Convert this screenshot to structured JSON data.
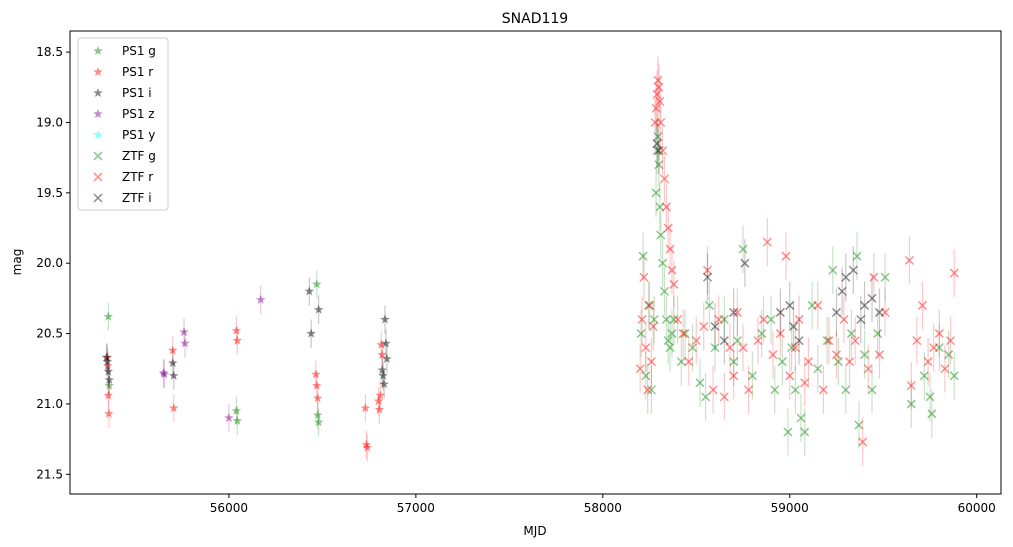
{
  "chart_data": {
    "type": "scatter",
    "title": "SNAD119",
    "xlabel": "MJD",
    "ylabel": "mag",
    "xlim": [
      55150,
      60130
    ],
    "ylim": [
      21.64,
      18.35
    ],
    "y_inverted": true,
    "x_ticks": [
      56000,
      57000,
      58000,
      59000,
      60000
    ],
    "y_ticks": [
      18.5,
      19.0,
      19.5,
      20.0,
      20.5,
      21.0,
      21.5
    ],
    "x_tick_labels": [
      "56000",
      "57000",
      "58000",
      "59000",
      "60000"
    ],
    "y_tick_labels": [
      "18.5",
      "19.0",
      "19.5",
      "20.0",
      "20.5",
      "21.0",
      "21.5"
    ],
    "legend_position": "upper-left",
    "series": [
      {
        "name": "PS1 g",
        "marker": "star",
        "color": "#008000",
        "points": [
          [
            55355,
            20.38
          ],
          [
            55360,
            20.87
          ],
          [
            56040,
            21.05
          ],
          [
            56045,
            21.12
          ],
          [
            56470,
            20.15
          ],
          [
            56475,
            21.08
          ],
          [
            56480,
            21.13
          ]
        ]
      },
      {
        "name": "PS1 r",
        "marker": "star",
        "color": "#ff0000",
        "points": [
          [
            55350,
            20.67
          ],
          [
            55352,
            20.73
          ],
          [
            55355,
            20.94
          ],
          [
            55358,
            21.07
          ],
          [
            55700,
            20.62
          ],
          [
            55705,
            21.03
          ],
          [
            56040,
            20.48
          ],
          [
            56045,
            20.55
          ],
          [
            56465,
            20.79
          ],
          [
            56470,
            20.87
          ],
          [
            56475,
            20.96
          ],
          [
            56730,
            21.03
          ],
          [
            56735,
            21.29
          ],
          [
            56740,
            21.31
          ],
          [
            56800,
            20.98
          ],
          [
            56805,
            21.04
          ],
          [
            56810,
            20.94
          ],
          [
            56815,
            20.58
          ],
          [
            56820,
            20.65
          ]
        ]
      },
      {
        "name": "PS1 i",
        "marker": "star",
        "color": "#000000",
        "points": [
          [
            55345,
            20.67
          ],
          [
            55350,
            20.7
          ],
          [
            55355,
            20.77
          ],
          [
            55360,
            20.83
          ],
          [
            55700,
            20.71
          ],
          [
            55705,
            20.8
          ],
          [
            56430,
            20.2
          ],
          [
            56440,
            20.5
          ],
          [
            56480,
            20.33
          ],
          [
            56820,
            20.76
          ],
          [
            56825,
            20.8
          ],
          [
            56830,
            20.86
          ],
          [
            56835,
            20.4
          ],
          [
            56840,
            20.57
          ],
          [
            56845,
            20.68
          ]
        ]
      },
      {
        "name": "PS1 z",
        "marker": "star",
        "color": "#800080",
        "points": [
          [
            55650,
            20.78
          ],
          [
            55655,
            20.79
          ],
          [
            55760,
            20.49
          ],
          [
            55765,
            20.57
          ],
          [
            56000,
            21.1
          ],
          [
            56170,
            20.26
          ]
        ]
      },
      {
        "name": "PS1 y",
        "marker": "star",
        "color": "#00ffff",
        "points": []
      },
      {
        "name": "ZTF g",
        "marker": "x",
        "color": "#008000",
        "points": [
          [
            58205,
            20.5
          ],
          [
            58215,
            19.95
          ],
          [
            58230,
            20.8
          ],
          [
            58245,
            20.3
          ],
          [
            58260,
            20.9
          ],
          [
            58275,
            20.4
          ],
          [
            58285,
            19.5
          ],
          [
            58290,
            19.2
          ],
          [
            58295,
            19.1
          ],
          [
            58300,
            19.3
          ],
          [
            58305,
            19.6
          ],
          [
            58310,
            19.8
          ],
          [
            58320,
            20.0
          ],
          [
            58330,
            20.2
          ],
          [
            58340,
            20.4
          ],
          [
            58350,
            20.55
          ],
          [
            58360,
            20.6
          ],
          [
            58370,
            20.5
          ],
          [
            58380,
            20.4
          ],
          [
            58420,
            20.7
          ],
          [
            58440,
            20.5
          ],
          [
            58480,
            20.6
          ],
          [
            58520,
            20.85
          ],
          [
            58550,
            20.95
          ],
          [
            58570,
            20.3
          ],
          [
            58600,
            20.6
          ],
          [
            58650,
            20.4
          ],
          [
            58700,
            20.7
          ],
          [
            58720,
            20.55
          ],
          [
            58750,
            19.9
          ],
          [
            58800,
            20.8
          ],
          [
            58850,
            20.5
          ],
          [
            58900,
            20.4
          ],
          [
            58920,
            20.9
          ],
          [
            58960,
            20.7
          ],
          [
            58990,
            21.2
          ],
          [
            59010,
            20.6
          ],
          [
            59030,
            20.9
          ],
          [
            59060,
            21.1
          ],
          [
            59080,
            21.2
          ],
          [
            59120,
            20.3
          ],
          [
            59150,
            20.75
          ],
          [
            59200,
            20.55
          ],
          [
            59230,
            20.05
          ],
          [
            59260,
            20.7
          ],
          [
            59300,
            20.9
          ],
          [
            59330,
            20.5
          ],
          [
            59360,
            19.95
          ],
          [
            59370,
            21.15
          ],
          [
            59400,
            20.65
          ],
          [
            59440,
            20.9
          ],
          [
            59470,
            20.5
          ],
          [
            59510,
            20.1
          ],
          [
            59650,
            21.0
          ],
          [
            59720,
            20.8
          ],
          [
            59750,
            20.95
          ],
          [
            59760,
            21.07
          ],
          [
            59800,
            20.6
          ],
          [
            59850,
            20.65
          ],
          [
            59880,
            20.8
          ]
        ]
      },
      {
        "name": "ZTF r",
        "marker": "x",
        "color": "#ff0000",
        "points": [
          [
            58200,
            20.75
          ],
          [
            58210,
            20.4
          ],
          [
            58220,
            20.1
          ],
          [
            58230,
            20.6
          ],
          [
            58240,
            20.9
          ],
          [
            58250,
            20.3
          ],
          [
            58260,
            20.7
          ],
          [
            58270,
            20.45
          ],
          [
            58280,
            19.0
          ],
          [
            58285,
            18.9
          ],
          [
            58290,
            18.8
          ],
          [
            58295,
            18.7
          ],
          [
            58300,
            18.75
          ],
          [
            58305,
            18.85
          ],
          [
            58310,
            19.0
          ],
          [
            58320,
            19.2
          ],
          [
            58330,
            19.4
          ],
          [
            58340,
            19.6
          ],
          [
            58350,
            19.75
          ],
          [
            58360,
            19.9
          ],
          [
            58370,
            20.05
          ],
          [
            58380,
            20.15
          ],
          [
            58400,
            20.4
          ],
          [
            58430,
            20.5
          ],
          [
            58460,
            20.7
          ],
          [
            58500,
            20.55
          ],
          [
            58540,
            20.45
          ],
          [
            58560,
            20.05
          ],
          [
            58590,
            20.9
          ],
          [
            58620,
            20.4
          ],
          [
            58650,
            20.95
          ],
          [
            58680,
            20.6
          ],
          [
            58700,
            20.8
          ],
          [
            58720,
            20.35
          ],
          [
            58750,
            20.6
          ],
          [
            58780,
            20.9
          ],
          [
            58830,
            20.55
          ],
          [
            58860,
            20.4
          ],
          [
            58880,
            19.85
          ],
          [
            58910,
            20.65
          ],
          [
            58950,
            20.5
          ],
          [
            58980,
            19.95
          ],
          [
            59000,
            20.8
          ],
          [
            59030,
            20.6
          ],
          [
            59050,
            20.4
          ],
          [
            59080,
            20.85
          ],
          [
            59100,
            20.7
          ],
          [
            59150,
            20.3
          ],
          [
            59180,
            20.9
          ],
          [
            59210,
            20.55
          ],
          [
            59250,
            20.65
          ],
          [
            59290,
            20.4
          ],
          [
            59320,
            20.7
          ],
          [
            59350,
            20.55
          ],
          [
            59390,
            21.27
          ],
          [
            59420,
            20.75
          ],
          [
            59450,
            20.1
          ],
          [
            59480,
            20.65
          ],
          [
            59510,
            20.35
          ],
          [
            59640,
            19.98
          ],
          [
            59650,
            20.87
          ],
          [
            59680,
            20.55
          ],
          [
            59710,
            20.3
          ],
          [
            59740,
            20.7
          ],
          [
            59770,
            20.6
          ],
          [
            59800,
            20.5
          ],
          [
            59830,
            20.75
          ],
          [
            59860,
            20.55
          ],
          [
            59880,
            20.07
          ]
        ]
      },
      {
        "name": "ZTF i",
        "marker": "x",
        "color": "#000000",
        "points": [
          [
            58290,
            19.15
          ],
          [
            58300,
            19.2
          ],
          [
            58560,
            20.1
          ],
          [
            58600,
            20.45
          ],
          [
            58650,
            20.55
          ],
          [
            58700,
            20.35
          ],
          [
            58760,
            20.0
          ],
          [
            58950,
            20.35
          ],
          [
            59000,
            20.3
          ],
          [
            59020,
            20.45
          ],
          [
            59050,
            20.55
          ],
          [
            59250,
            20.35
          ],
          [
            59280,
            20.2
          ],
          [
            59300,
            20.1
          ],
          [
            59340,
            20.05
          ],
          [
            59380,
            20.4
          ],
          [
            59400,
            20.3
          ],
          [
            59440,
            20.25
          ],
          [
            59480,
            20.35
          ]
        ]
      }
    ]
  }
}
